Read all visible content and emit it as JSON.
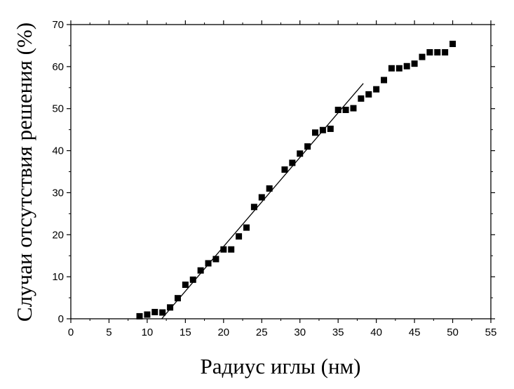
{
  "chart_data": {
    "type": "scatter",
    "xlabel": "Радиус иглы (нм)",
    "ylabel": "Случаи отсутствия решения (%)",
    "xlim": [
      0,
      55
    ],
    "ylim": [
      0,
      70
    ],
    "x_ticks": [
      0,
      5,
      10,
      15,
      20,
      25,
      30,
      35,
      40,
      45,
      50,
      55
    ],
    "y_ticks": [
      0,
      10,
      20,
      30,
      40,
      50,
      60,
      70
    ],
    "grid": false,
    "marker": "square",
    "marker_color": "#000000",
    "series": [
      {
        "x": [
          9,
          10,
          11,
          12,
          13,
          14,
          15,
          16,
          17,
          18,
          19,
          20,
          21,
          22,
          23,
          24,
          25,
          26,
          28,
          29,
          30,
          31,
          32,
          33,
          34,
          35,
          36,
          37,
          38,
          39,
          40,
          41,
          42,
          43,
          44,
          45,
          46,
          47,
          48,
          49,
          50
        ],
        "y": [
          0.6,
          1.0,
          1.6,
          1.5,
          2.7,
          4.9,
          8.1,
          9.3,
          11.5,
          13.2,
          14.2,
          16.5,
          16.5,
          19.6,
          21.7,
          26.6,
          28.9,
          31.0,
          35.5,
          37.1,
          39.3,
          41.0,
          44.3,
          44.9,
          45.2,
          49.7,
          49.7,
          50.1,
          52.4,
          53.4,
          54.6,
          56.8,
          59.6,
          59.6,
          60.1,
          60.7,
          62.3,
          63.4,
          63.4,
          63.4,
          65.4
        ]
      }
    ],
    "fit_line": {
      "x": [
        11.9,
        38.3
      ],
      "y": [
        0,
        56.0
      ]
    }
  }
}
